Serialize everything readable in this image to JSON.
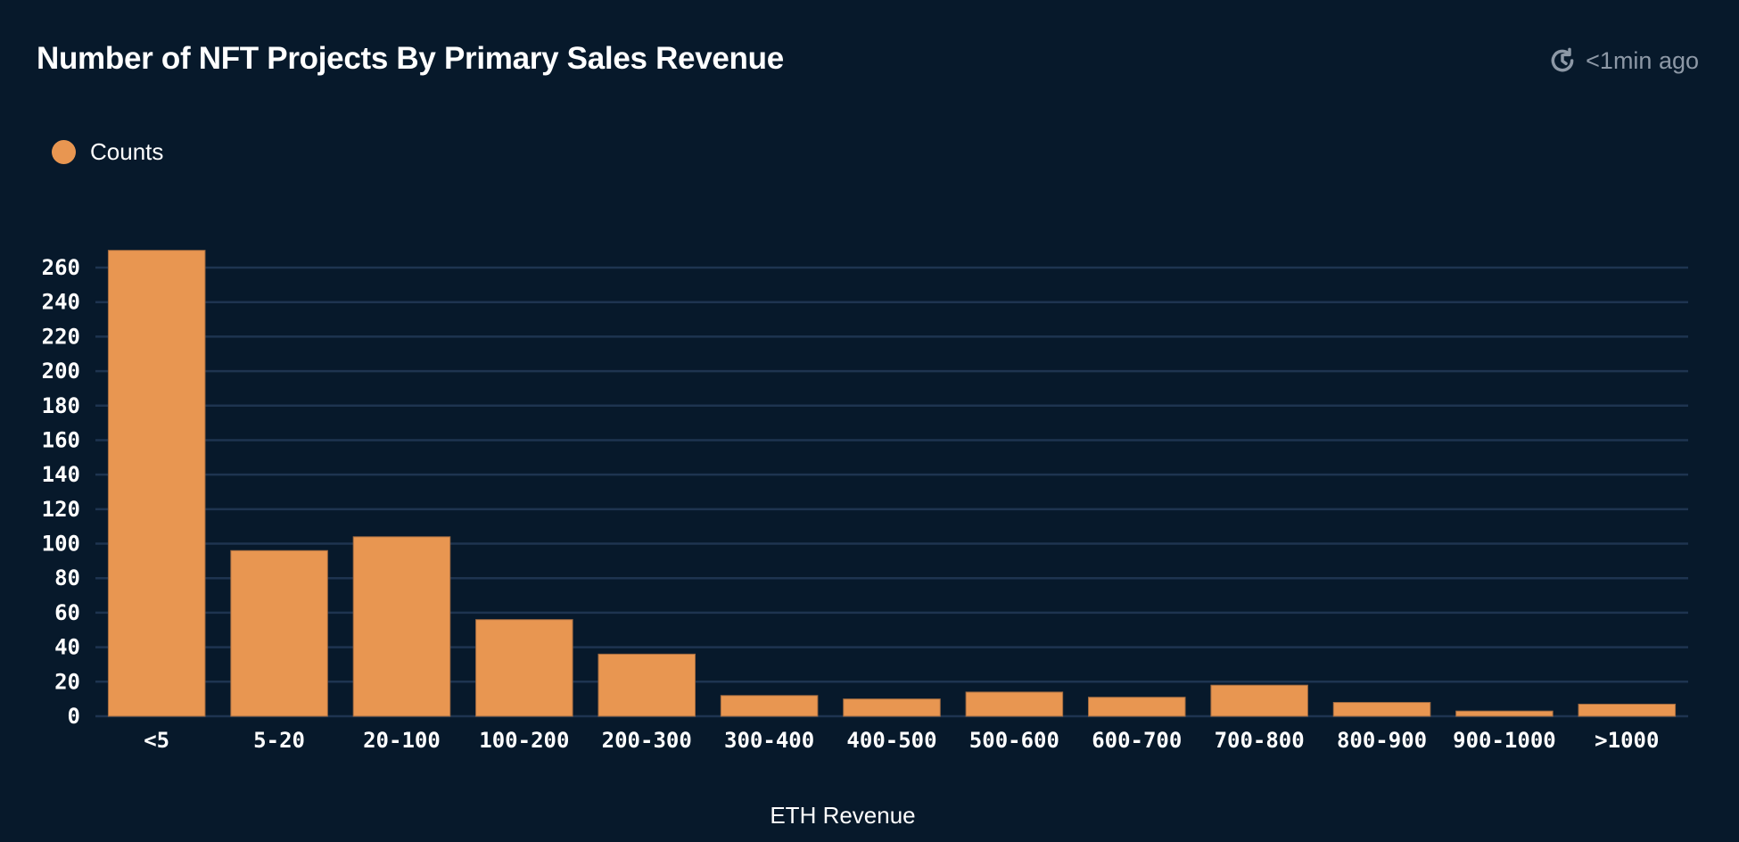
{
  "header": {
    "title": "Number of NFT Projects By Primary Sales Revenue",
    "updated": "<1min ago",
    "updated_icon": "clock-refresh-icon"
  },
  "colors": {
    "background": "#07192b",
    "bar": "#e89651",
    "grid": "#1e3450",
    "muted_text": "#8d98a6"
  },
  "chart_data": {
    "type": "bar",
    "title": "Number of NFT Projects By Primary Sales Revenue",
    "xlabel": "ETH Revenue",
    "ylabel": "",
    "legend": {
      "entries": [
        "Counts"
      ],
      "position": "top-left"
    },
    "grid": true,
    "ylim": [
      0,
      260
    ],
    "yticks": [
      0,
      20,
      40,
      60,
      80,
      100,
      120,
      140,
      160,
      180,
      200,
      220,
      240,
      260
    ],
    "categories": [
      "<5",
      "5-20",
      "20-100",
      "100-200",
      "200-300",
      "300-400",
      "400-500",
      "500-600",
      "600-700",
      "700-800",
      "800-900",
      "900-1000",
      ">1000"
    ],
    "series": [
      {
        "name": "Counts",
        "values": [
          270,
          96,
          104,
          56,
          36,
          12,
          10,
          14,
          11,
          18,
          8,
          3,
          7
        ]
      }
    ]
  }
}
